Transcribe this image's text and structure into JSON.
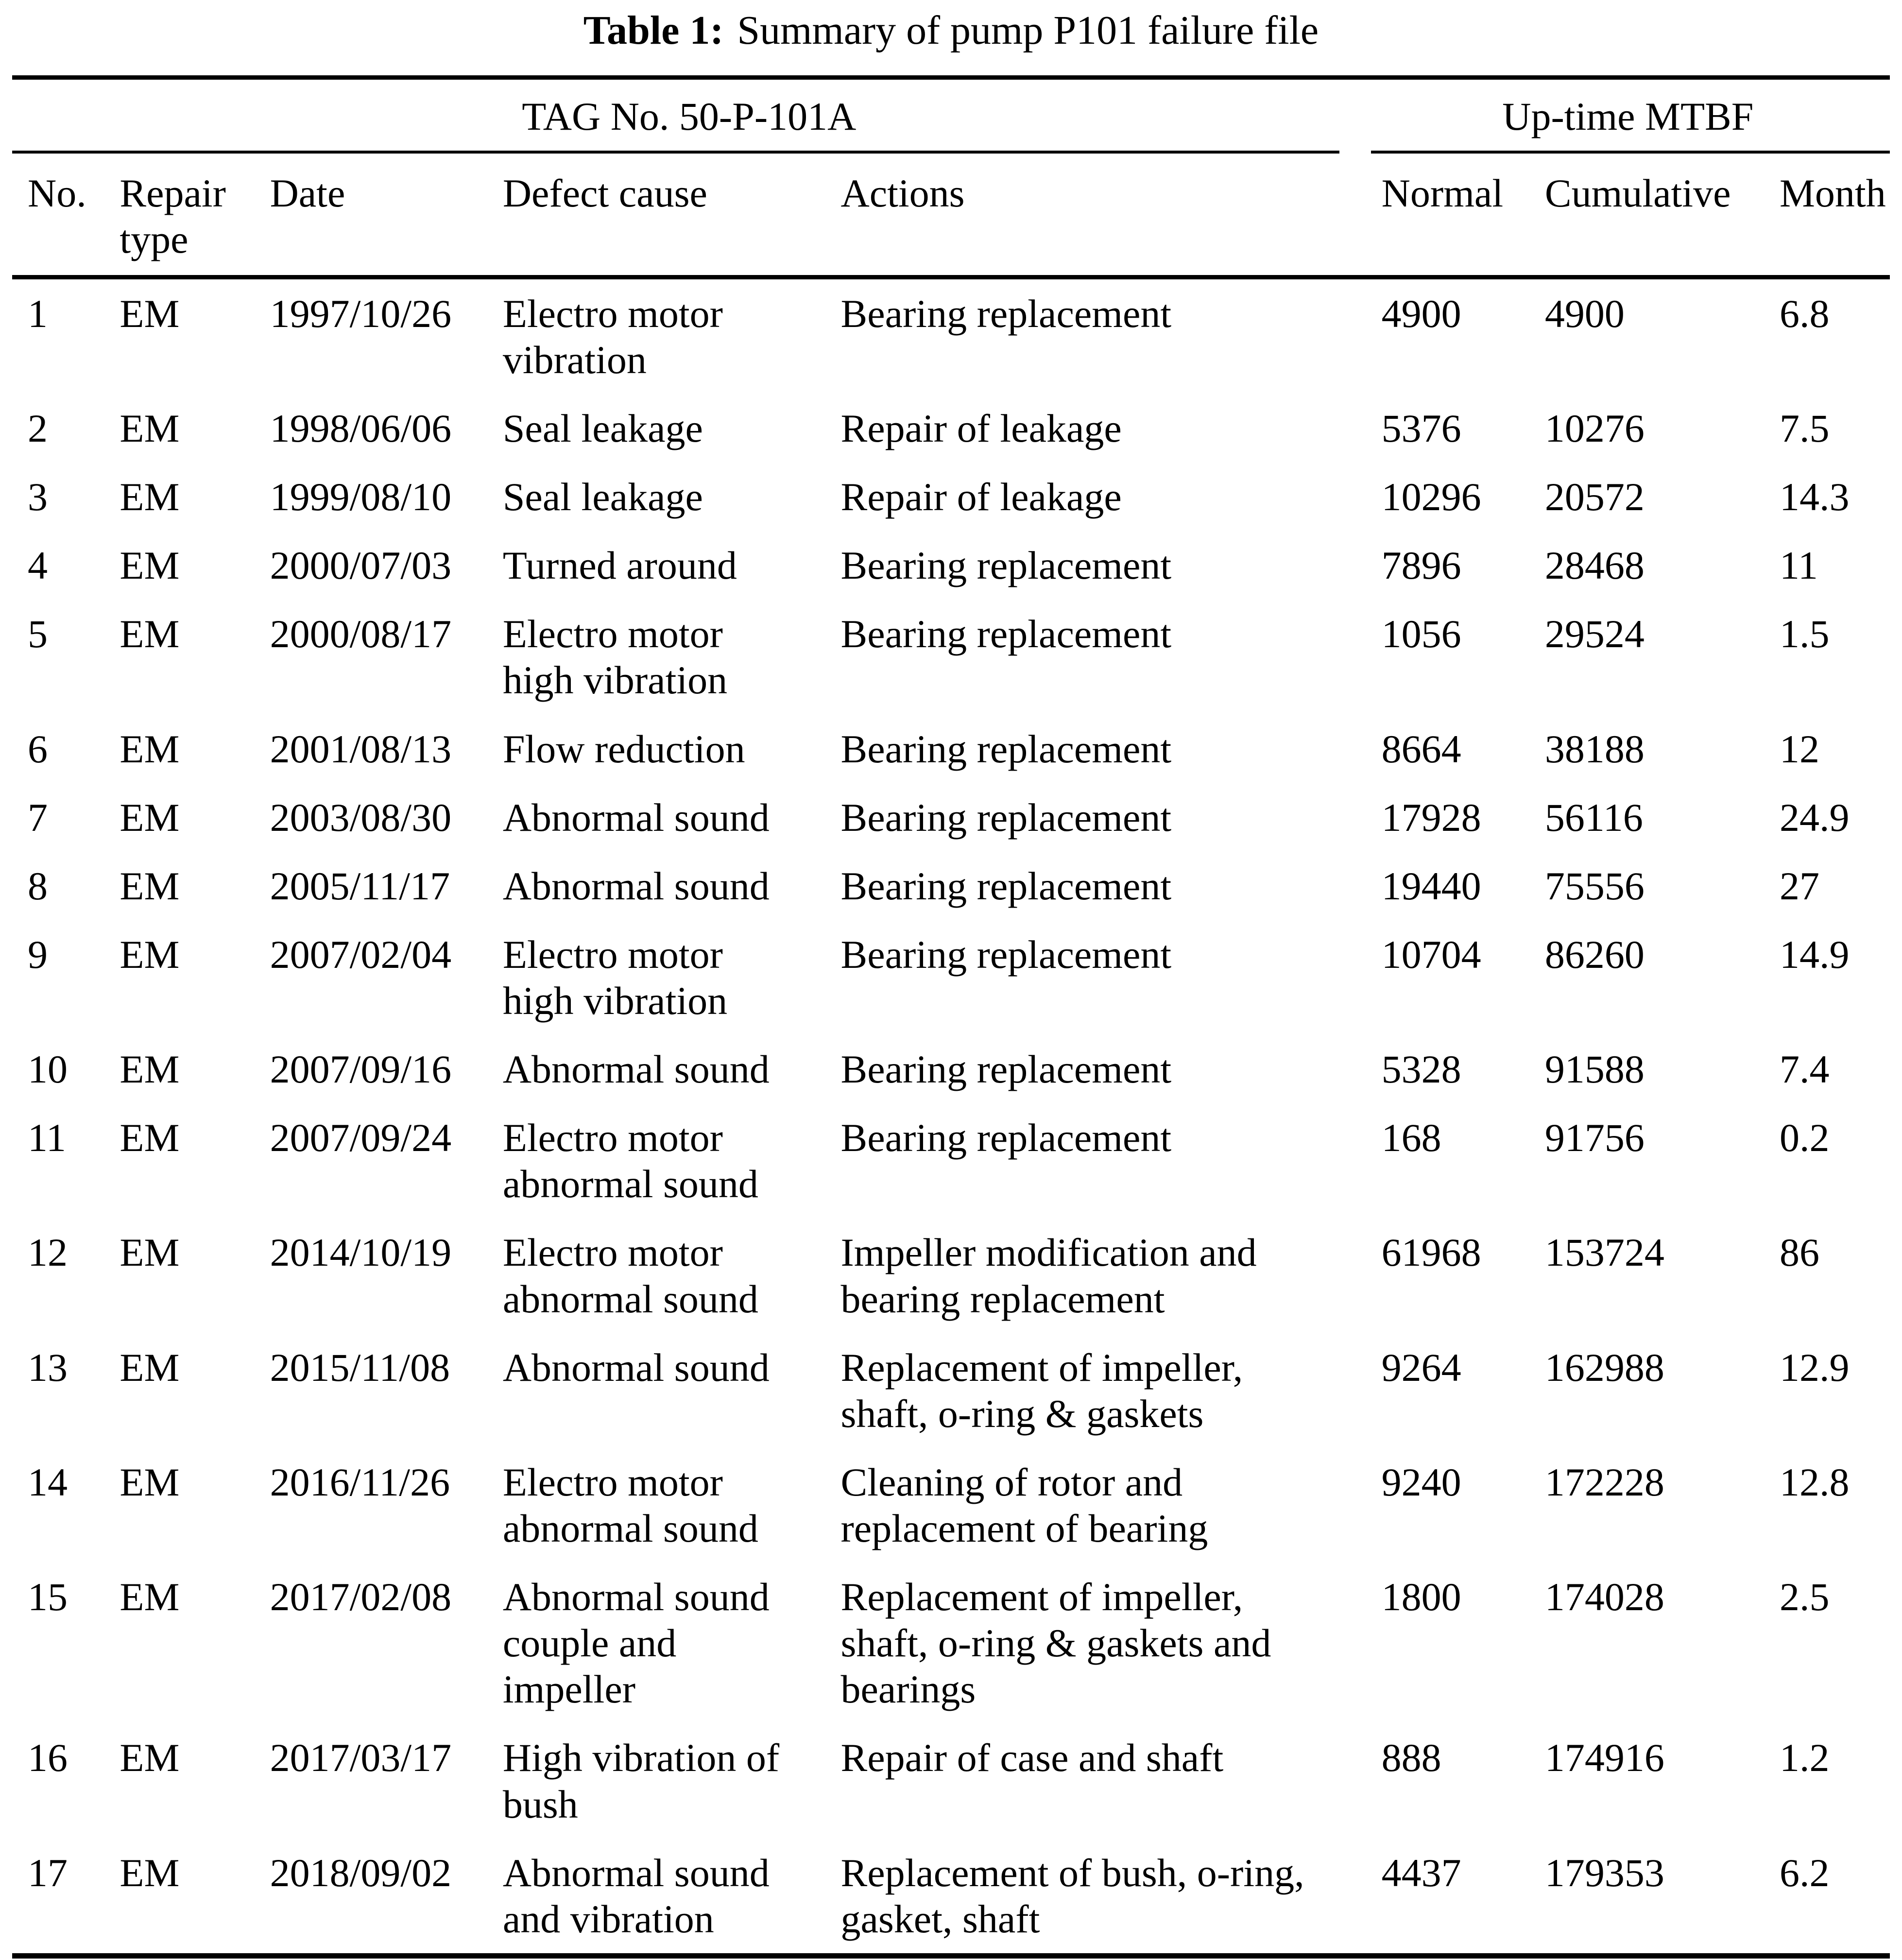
{
  "caption": {
    "label": "Table 1:",
    "text": "Summary of pump P101 failure file"
  },
  "table": {
    "group_headers": [
      {
        "label": "TAG No. 50-P-101A",
        "span": 5
      },
      {
        "label": "Up-time MTBF",
        "span": 3
      }
    ],
    "columns": [
      "No.",
      "Repair\ntype",
      "Date",
      "Defect cause",
      "Actions",
      "Normal",
      "Cumulative",
      "Month"
    ],
    "rows": [
      {
        "no": "1",
        "repair_type": "EM",
        "date": "1997/10/26",
        "defect_cause": "Electro motor\nvibration",
        "actions": "Bearing replacement",
        "normal": "4900",
        "cumulative": "4900",
        "month": "6.8"
      },
      {
        "no": "2",
        "repair_type": "EM",
        "date": "1998/06/06",
        "defect_cause": "Seal leakage",
        "actions": "Repair of leakage",
        "normal": "5376",
        "cumulative": "10276",
        "month": "7.5"
      },
      {
        "no": "3",
        "repair_type": "EM",
        "date": "1999/08/10",
        "defect_cause": "Seal leakage",
        "actions": "Repair of leakage",
        "normal": "10296",
        "cumulative": "20572",
        "month": "14.3"
      },
      {
        "no": "4",
        "repair_type": "EM",
        "date": "2000/07/03",
        "defect_cause": "Turned around",
        "actions": "Bearing replacement",
        "normal": "7896",
        "cumulative": "28468",
        "month": "11"
      },
      {
        "no": "5",
        "repair_type": "EM",
        "date": "2000/08/17",
        "defect_cause": "Electro motor\nhigh vibration",
        "actions": "Bearing replacement",
        "normal": "1056",
        "cumulative": "29524",
        "month": "1.5"
      },
      {
        "no": "6",
        "repair_type": "EM",
        "date": "2001/08/13",
        "defect_cause": "Flow reduction",
        "actions": "Bearing replacement",
        "normal": "8664",
        "cumulative": "38188",
        "month": "12"
      },
      {
        "no": "7",
        "repair_type": "EM",
        "date": "2003/08/30",
        "defect_cause": "Abnormal sound",
        "actions": "Bearing replacement",
        "normal": "17928",
        "cumulative": "56116",
        "month": "24.9"
      },
      {
        "no": "8",
        "repair_type": "EM",
        "date": "2005/11/17",
        "defect_cause": "Abnormal sound",
        "actions": "Bearing replacement",
        "normal": "19440",
        "cumulative": "75556",
        "month": "27"
      },
      {
        "no": "9",
        "repair_type": "EM",
        "date": "2007/02/04",
        "defect_cause": "Electro motor\nhigh vibration",
        "actions": "Bearing replacement",
        "normal": "10704",
        "cumulative": "86260",
        "month": "14.9"
      },
      {
        "no": "10",
        "repair_type": "EM",
        "date": "2007/09/16",
        "defect_cause": "Abnormal sound",
        "actions": "Bearing replacement",
        "normal": "5328",
        "cumulative": "91588",
        "month": "7.4"
      },
      {
        "no": "11",
        "repair_type": "EM",
        "date": "2007/09/24",
        "defect_cause": "Electro motor\nabnormal sound",
        "actions": "Bearing replacement",
        "normal": "168",
        "cumulative": "91756",
        "month": "0.2"
      },
      {
        "no": "12",
        "repair_type": "EM",
        "date": "2014/10/19",
        "defect_cause": "Electro motor\nabnormal sound",
        "actions": "Impeller modification and\nbearing replacement",
        "normal": "61968",
        "cumulative": "153724",
        "month": "86"
      },
      {
        "no": "13",
        "repair_type": "EM",
        "date": "2015/11/08",
        "defect_cause": "Abnormal sound",
        "actions": "Replacement of impeller,\nshaft, o-ring & gaskets",
        "normal": "9264",
        "cumulative": "162988",
        "month": "12.9"
      },
      {
        "no": "14",
        "repair_type": "EM",
        "date": "2016/11/26",
        "defect_cause": "Electro motor\nabnormal sound",
        "actions": "Cleaning of rotor and\nreplacement of bearing",
        "normal": "9240",
        "cumulative": "172228",
        "month": "12.8"
      },
      {
        "no": "15",
        "repair_type": "EM",
        "date": "2017/02/08",
        "defect_cause": "Abnormal sound\ncouple and\nimpeller",
        "actions": "Replacement of impeller,\nshaft, o-ring & gaskets and\nbearings",
        "normal": "1800",
        "cumulative": "174028",
        "month": "2.5"
      },
      {
        "no": "16",
        "repair_type": "EM",
        "date": "2017/03/17",
        "defect_cause": "High vibration of\nbush",
        "actions": "Repair of case and shaft",
        "normal": "888",
        "cumulative": "174916",
        "month": "1.2"
      },
      {
        "no": "17",
        "repair_type": "EM",
        "date": "2018/09/02",
        "defect_cause": "Abnormal sound\nand vibration",
        "actions": "Replacement of bush, o-ring,\ngasket, shaft",
        "normal": "4437",
        "cumulative": "179353",
        "month": "6.2"
      }
    ]
  }
}
